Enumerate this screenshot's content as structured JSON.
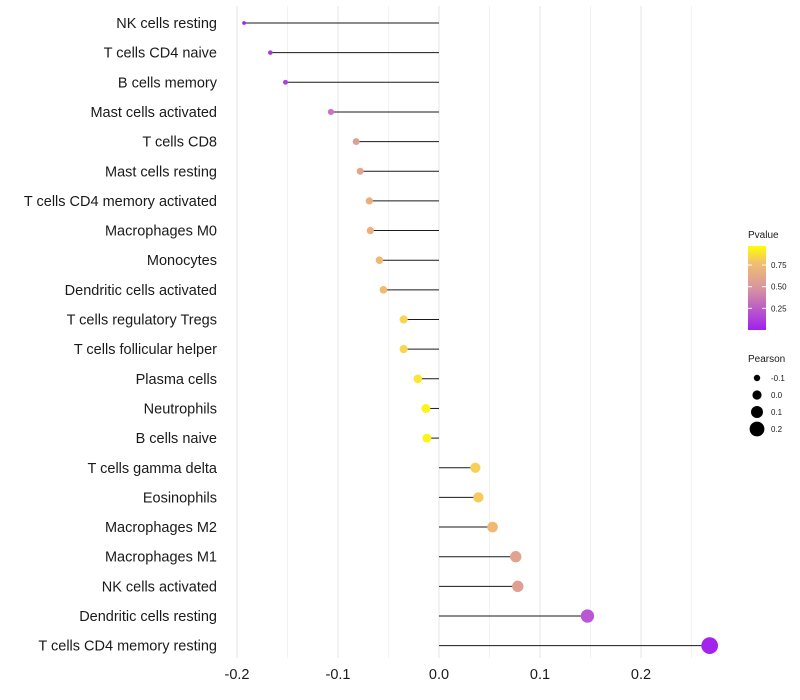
{
  "chart_data": {
    "type": "lollipop",
    "categories": [
      "NK cells resting",
      "T cells CD4 naive",
      "B cells memory",
      "Mast cells activated",
      "T cells CD8",
      "Mast cells resting",
      "T cells CD4 memory activated",
      "Macrophages M0",
      "Monocytes",
      "Dendritic cells activated",
      "T cells regulatory  Tregs ",
      "T cells follicular helper",
      "Plasma cells",
      "Neutrophils",
      "B cells naive",
      "T cells gamma delta",
      "Eosinophils",
      "Macrophages M2",
      "Macrophages M1",
      "NK cells activated",
      "Dendritic cells resting",
      "T cells CD4 memory resting"
    ],
    "pearson": [
      -0.193,
      -0.167,
      -0.152,
      -0.107,
      -0.082,
      -0.078,
      -0.069,
      -0.068,
      -0.059,
      -0.055,
      -0.035,
      -0.035,
      -0.021,
      -0.013,
      -0.012,
      0.036,
      0.039,
      0.053,
      0.076,
      0.078,
      0.147,
      0.268
    ],
    "pvalue": [
      0.03,
      0.08,
      0.12,
      0.32,
      0.55,
      0.58,
      0.64,
      0.65,
      0.7,
      0.71,
      0.82,
      0.82,
      0.88,
      0.93,
      0.93,
      0.8,
      0.78,
      0.7,
      0.56,
      0.55,
      0.2,
      0.02
    ],
    "xaxis": {
      "range": [
        -0.2,
        0.27
      ],
      "ticks": [
        -0.2,
        -0.1,
        0.0,
        0.1,
        0.2
      ],
      "tick_labels": [
        "-0.2",
        "-0.1",
        "0.0",
        "0.1",
        "0.2"
      ]
    },
    "legend_color": {
      "title": "Pvalue",
      "range": [
        0.0,
        0.97
      ],
      "ticks": [
        0.25,
        0.5,
        0.75
      ],
      "tick_labels": [
        "0.25",
        "0.50",
        "0.75"
      ],
      "low_color": "#a020f0",
      "high_color": "#ffff00"
    },
    "legend_size": {
      "title": "Pearson",
      "values": [
        -0.1,
        0.0,
        0.1,
        0.2
      ],
      "labels": [
        "-0.1",
        "0.0",
        "0.1",
        "0.2"
      ]
    },
    "grid": true,
    "legend_position": "right"
  }
}
